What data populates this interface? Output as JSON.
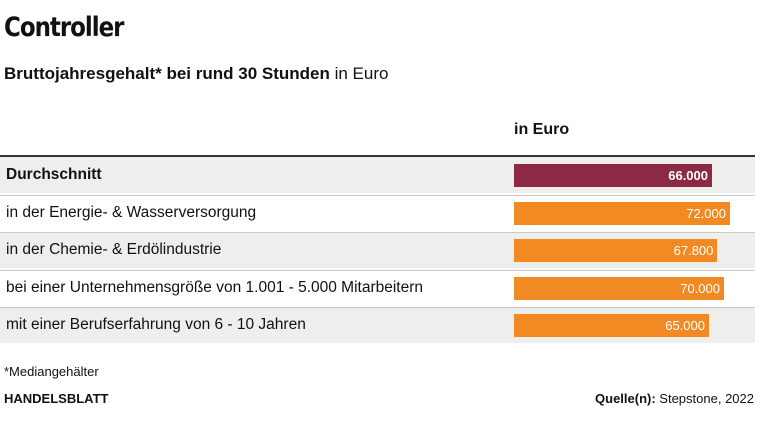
{
  "header": {
    "title": "Controller",
    "subtitle_bold": "Bruttojahresgehalt* bei rund 30 Stunden",
    "subtitle_rest": " in Euro"
  },
  "table": {
    "column_header": "in Euro"
  },
  "chart_data": {
    "type": "bar",
    "orientation": "horizontal",
    "title": "Controller",
    "subtitle": "Bruttojahresgehalt* bei rund 30 Stunden in Euro",
    "xlabel": "in Euro",
    "categories": [
      "Durchschnitt",
      "in der Energie- & Wasserversorgung",
      "in der Chemie- & Erdölindustrie",
      "bei einer Unternehmensgröße von 1.001 - 5.000 Mitarbeitern",
      "mit einer Berufserfahrung von 6 - 10 Jahren"
    ],
    "values": [
      66000,
      72000,
      67800,
      70000,
      65000
    ],
    "value_labels": [
      "66.000",
      "72.000",
      "67.800",
      "70.000",
      "65.000"
    ],
    "highlight_index": 0,
    "colors": {
      "highlight": "#8b2a42",
      "default": "#f28a24"
    },
    "xlim": [
      0,
      80000
    ],
    "grid": false
  },
  "footer": {
    "footnote": "*Mediangehälter",
    "brand": "HANDELSBLATT",
    "source_label": "Quelle(n):",
    "source_text": " Stepstone, 2022"
  }
}
